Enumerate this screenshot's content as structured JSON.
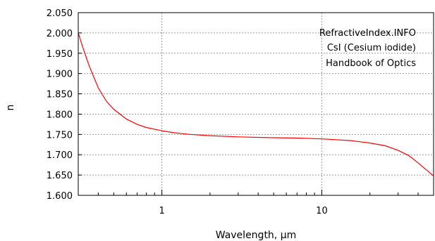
{
  "chart_data": {
    "type": "line",
    "title": "",
    "annotations": [
      "RefractiveIndex.INFO",
      "CsI (Cesium iodide)",
      "Handbook of Optics"
    ],
    "xlabel": "Wavelength, µm",
    "ylabel": "n",
    "x_scale": "log",
    "xlim": [
      0.3,
      50
    ],
    "ylim": [
      1.6,
      2.05
    ],
    "x_ticks": [
      {
        "value": 1,
        "label": "1"
      },
      {
        "value": 10,
        "label": "10"
      }
    ],
    "y_ticks": [
      {
        "value": 1.6,
        "label": "1.600"
      },
      {
        "value": 1.65,
        "label": "1.650"
      },
      {
        "value": 1.7,
        "label": "1.700"
      },
      {
        "value": 1.75,
        "label": "1.750"
      },
      {
        "value": 1.8,
        "label": "1.800"
      },
      {
        "value": 1.85,
        "label": "1.850"
      },
      {
        "value": 1.9,
        "label": "1.900"
      },
      {
        "value": 1.95,
        "label": "1.950"
      },
      {
        "value": 2.0,
        "label": "2.000"
      },
      {
        "value": 2.05,
        "label": "2.050"
      }
    ],
    "grid": true,
    "series": [
      {
        "color": "#ff0000",
        "x": [
          0.3,
          0.32,
          0.35,
          0.4,
          0.45,
          0.5,
          0.6,
          0.7,
          0.8,
          1.0,
          1.2,
          1.5,
          2,
          3,
          5,
          7,
          10,
          15,
          20,
          25,
          30,
          35,
          40,
          45,
          50
        ],
        "y": [
          2.0,
          1.965,
          1.92,
          1.865,
          1.832,
          1.812,
          1.788,
          1.775,
          1.767,
          1.759,
          1.754,
          1.75,
          1.747,
          1.744,
          1.742,
          1.741,
          1.739,
          1.735,
          1.729,
          1.722,
          1.711,
          1.698,
          1.68,
          1.663,
          1.648
        ]
      }
    ]
  }
}
